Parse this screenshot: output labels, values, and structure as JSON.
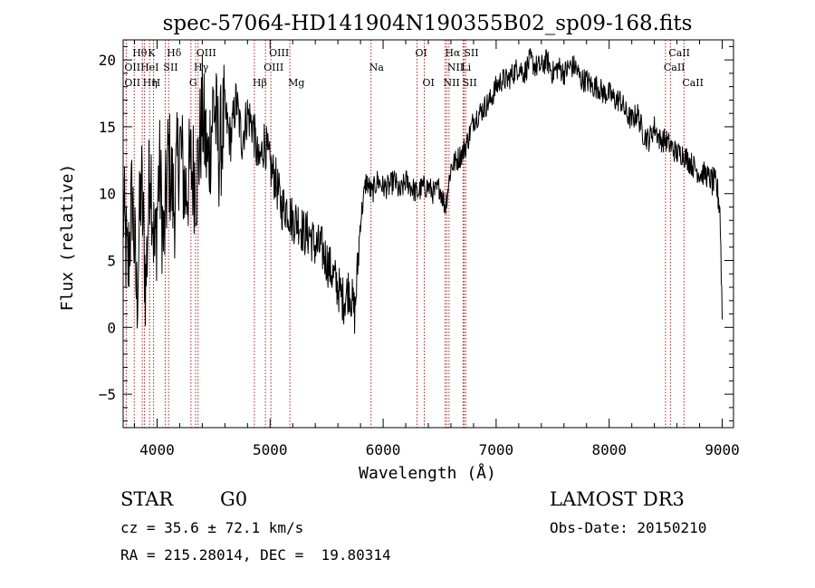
{
  "chart_data": {
    "type": "line",
    "title": "spec-57064-HD141904N190355B02_sp09-168.fits",
    "xlabel": "Wavelength (Å)",
    "ylabel": "Flux (relative)",
    "xlim": [
      3700,
      9100
    ],
    "ylim": [
      -7.5,
      21.5
    ],
    "x_ticks": [
      4000,
      5000,
      6000,
      7000,
      8000,
      9000
    ],
    "y_ticks": [
      -5,
      0,
      5,
      10,
      15,
      20
    ],
    "grid": false,
    "legend": "none",
    "series": [
      {
        "x": [
          3700,
          3740,
          3780,
          3820,
          3860,
          3900,
          3940,
          3980,
          4020,
          4060,
          4100,
          4150,
          4200,
          4250,
          4300,
          4350,
          4400,
          4450,
          4500,
          4550,
          4600,
          4650,
          4700,
          4750,
          4800,
          4850,
          4900,
          4950,
          5000,
          5050,
          5100,
          5150,
          5200,
          5250,
          5300,
          5350,
          5400,
          5450,
          5500,
          5550,
          5600,
          5650,
          5700,
          5750,
          5800,
          5850,
          5900,
          5950,
          6000,
          6050,
          6100,
          6150,
          6200,
          6250,
          6300,
          6350,
          6400,
          6450,
          6500,
          6550,
          6600,
          6650,
          6700,
          6750,
          6800,
          6850,
          6900,
          6950,
          7000,
          7050,
          7100,
          7150,
          7200,
          7250,
          7300,
          7350,
          7400,
          7450,
          7500,
          7550,
          7600,
          7650,
          7700,
          7750,
          7800,
          7850,
          7900,
          7950,
          8000,
          8050,
          8100,
          8150,
          8200,
          8250,
          8300,
          8350,
          8400,
          8450,
          8500,
          8550,
          8600,
          8650,
          8700,
          8750,
          8800,
          8850,
          8900,
          8950,
          8980,
          9000
        ],
        "y": [
          9,
          4,
          10,
          2,
          11,
          3,
          13,
          5,
          12,
          6,
          13,
          9,
          14,
          10,
          12,
          11,
          16,
          12,
          17,
          13,
          16,
          14,
          17,
          14,
          16,
          15,
          12,
          14,
          12,
          11,
          9,
          9,
          8,
          8,
          7,
          7,
          6,
          6,
          5,
          4,
          3,
          2,
          3,
          1,
          8,
          11,
          10,
          11,
          10.5,
          10.5,
          11,
          10,
          11,
          10.5,
          10,
          10.5,
          10.5,
          10,
          10.5,
          9,
          12,
          12.5,
          13,
          14,
          15.5,
          16,
          16.5,
          17,
          18,
          18.5,
          18.5,
          19,
          19.5,
          19,
          20,
          19.5,
          19.5,
          20,
          19,
          19.5,
          19,
          19.5,
          19.5,
          18.5,
          18.5,
          18,
          18,
          17.5,
          17.5,
          17,
          17,
          16,
          15.5,
          16,
          14.5,
          14,
          15,
          14,
          14,
          13.5,
          13,
          13,
          12.5,
          12,
          11.5,
          11.5,
          11,
          10.5,
          9,
          1
        ]
      }
    ],
    "lines": [
      {
        "x": 3727,
        "labels": [
          "OII"
        ]
      },
      {
        "x": 3798,
        "labels": [
          "Hθ"
        ]
      },
      {
        "x": 3869,
        "labels": [
          "HeI"
        ]
      },
      {
        "x": 3889,
        "labels": [
          "Hη"
        ]
      },
      {
        "x": 3934,
        "labels": [
          "K"
        ]
      },
      {
        "x": 3969,
        "labels": [
          "H"
        ]
      },
      {
        "x": 4072,
        "labels": [
          "SII"
        ]
      },
      {
        "x": 4102,
        "labels": [
          "Hδ"
        ]
      },
      {
        "x": 4300,
        "labels": [
          "G"
        ]
      },
      {
        "x": 4341,
        "labels": [
          "Hγ"
        ]
      },
      {
        "x": 4363,
        "labels": [
          "OIII"
        ]
      },
      {
        "x": 4861,
        "labels": [
          "Hβ"
        ]
      },
      {
        "x": 4959,
        "labels": [
          "OIII"
        ]
      },
      {
        "x": 5007,
        "labels": [
          "OIII"
        ]
      },
      {
        "x": 5175,
        "labels": [
          "Mg"
        ]
      },
      {
        "x": 5893,
        "labels": [
          "Na"
        ]
      },
      {
        "x": 6300,
        "labels": [
          "OI"
        ]
      },
      {
        "x": 6364,
        "labels": [
          "OI"
        ]
      },
      {
        "x": 6548,
        "labels": [
          "NII"
        ]
      },
      {
        "x": 6563,
        "labels": [
          "Hα"
        ]
      },
      {
        "x": 6583,
        "labels": [
          "NII"
        ]
      },
      {
        "x": 6707,
        "labels": [
          "Li"
        ]
      },
      {
        "x": 6717,
        "labels": [
          "SII"
        ]
      },
      {
        "x": 6731,
        "labels": [
          "SII"
        ]
      },
      {
        "x": 8498,
        "labels": [
          "CaII"
        ]
      },
      {
        "x": 8542,
        "labels": [
          "CaII"
        ]
      },
      {
        "x": 8662,
        "labels": [
          "CaII"
        ]
      }
    ],
    "line_labels": [
      {
        "text": "Hθ",
        "x": 3798,
        "row": 0
      },
      {
        "text": "K",
        "x": 3934,
        "row": 0
      },
      {
        "text": "Hδ",
        "x": 4102,
        "row": 0
      },
      {
        "text": "OIII",
        "x": 4363,
        "row": 0
      },
      {
        "text": "OIII",
        "x": 5007,
        "row": 0
      },
      {
        "text": "OI",
        "x": 6300,
        "row": 0
      },
      {
        "text": "Hα",
        "x": 6563,
        "row": 0
      },
      {
        "text": "SII",
        "x": 6731,
        "row": 0
      },
      {
        "text": "CaII",
        "x": 8542,
        "row": 0
      },
      {
        "text": "OII",
        "x": 3727,
        "row": 1
      },
      {
        "text": "HeI",
        "x": 3869,
        "row": 1
      },
      {
        "text": "SII",
        "x": 4072,
        "row": 1
      },
      {
        "text": "Hγ",
        "x": 4341,
        "row": 1
      },
      {
        "text": "OIII",
        "x": 4959,
        "row": 1
      },
      {
        "text": "Na",
        "x": 5893,
        "row": 1
      },
      {
        "text": "NII",
        "x": 6583,
        "row": 1
      },
      {
        "text": "Li",
        "x": 6707,
        "row": 1
      },
      {
        "text": "CaII",
        "x": 8498,
        "row": 1
      },
      {
        "text": "OII",
        "x": 3727,
        "row": 2
      },
      {
        "text": "Hη",
        "x": 3889,
        "row": 2
      },
      {
        "text": "H",
        "x": 3969,
        "row": 2
      },
      {
        "text": "G",
        "x": 4300,
        "row": 2
      },
      {
        "text": "Hβ",
        "x": 4861,
        "row": 2
      },
      {
        "text": "Mg",
        "x": 5175,
        "row": 2
      },
      {
        "text": "OI",
        "x": 6364,
        "row": 2
      },
      {
        "text": "NII",
        "x": 6548,
        "row": 2
      },
      {
        "text": "SII",
        "x": 6717,
        "row": 2
      },
      {
        "text": "CaII",
        "x": 8662,
        "row": 2
      }
    ],
    "colors": {
      "spectrum": "#000000",
      "lines": "#b22222"
    }
  },
  "info": {
    "object_class": "STAR",
    "subclass": "G0",
    "survey": "LAMOST DR3",
    "cz": "cz = 35.6 ± 72.1 km/s",
    "obs_date": "Obs-Date: 20150210",
    "coords": "RA = 215.28014, DEC =  19.80314"
  }
}
